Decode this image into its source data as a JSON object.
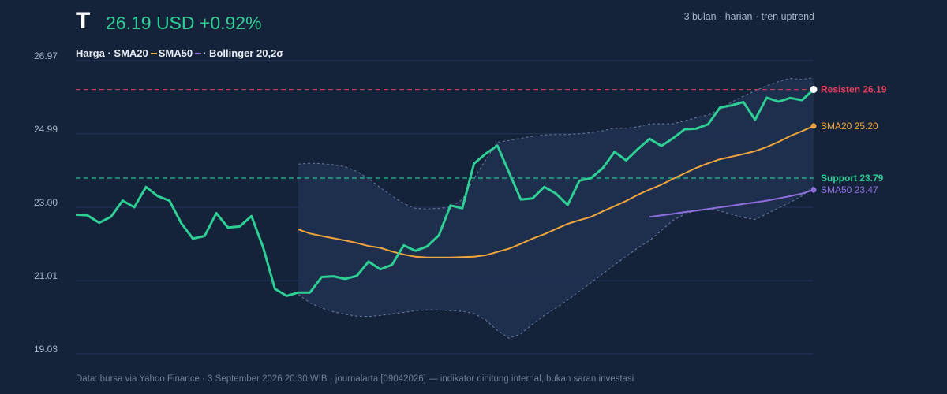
{
  "header": {
    "ticker": "T",
    "price_text": "26.19 USD +0.92%",
    "period": "3 bulan · harian · tren uptrend"
  },
  "legend": {
    "text1": "Harga · SMA20",
    "text2": "SMA50",
    "text3": "· Bollinger 20,2σ"
  },
  "footer": "Data: bursa via Yahoo Finance · 3 September 2026 20:30 WIB · journalarta [09042026] — indikator dihitung internal, bukan saran investasi",
  "colors": {
    "background": "#15233a",
    "price": "#2ecf94",
    "sma20": "#f0a63c",
    "sma50": "#8f6fe0",
    "resistance": "#e0405a",
    "support": "#2ecf94",
    "band_fill": "#1f3150"
  },
  "chart_data": {
    "type": "line",
    "ylim": [
      19.03,
      26.97
    ],
    "y_ticks": [
      "26.97",
      "24.99",
      "23.00",
      "21.01",
      "19.03"
    ],
    "y_tick_values": [
      26.97,
      24.99,
      23.0,
      21.01,
      19.03
    ],
    "n_points": 64,
    "series": [
      {
        "key": "price",
        "values": [
          22.8,
          22.78,
          22.58,
          22.74,
          23.18,
          23.0,
          23.55,
          23.3,
          23.18,
          22.57,
          22.15,
          22.22,
          22.84,
          22.45,
          22.48,
          22.76,
          21.91,
          20.79,
          20.6,
          20.69,
          20.69,
          21.11,
          21.13,
          21.06,
          21.14,
          21.53,
          21.32,
          21.44,
          21.97,
          21.82,
          21.94,
          22.24,
          23.05,
          22.97,
          24.18,
          24.45,
          24.67,
          23.94,
          23.21,
          23.24,
          23.55,
          23.37,
          23.06,
          23.72,
          23.79,
          24.06,
          24.5,
          24.27,
          24.58,
          24.85,
          24.66,
          24.87,
          25.11,
          25.13,
          25.25,
          25.7,
          25.76,
          25.85,
          25.37,
          25.97,
          25.86,
          25.96,
          25.9,
          26.19
        ]
      },
      {
        "key": "sma20",
        "values": [
          null,
          null,
          null,
          null,
          null,
          null,
          null,
          null,
          null,
          null,
          null,
          null,
          null,
          null,
          null,
          null,
          null,
          null,
          null,
          22.4,
          22.29,
          22.22,
          22.16,
          22.1,
          22.03,
          21.95,
          21.9,
          21.8,
          21.72,
          21.66,
          21.64,
          21.64,
          21.64,
          21.65,
          21.66,
          21.7,
          21.79,
          21.88,
          22.01,
          22.15,
          22.27,
          22.41,
          22.55,
          22.65,
          22.74,
          22.89,
          23.03,
          23.17,
          23.34,
          23.48,
          23.61,
          23.77,
          23.92,
          24.07,
          24.19,
          24.3,
          24.37,
          24.44,
          24.52,
          24.63,
          24.77,
          24.93,
          25.06,
          25.2
        ]
      },
      {
        "key": "sma50",
        "values": [
          null,
          null,
          null,
          null,
          null,
          null,
          null,
          null,
          null,
          null,
          null,
          null,
          null,
          null,
          null,
          null,
          null,
          null,
          null,
          null,
          null,
          null,
          null,
          null,
          null,
          null,
          null,
          null,
          null,
          null,
          null,
          null,
          null,
          null,
          null,
          null,
          null,
          null,
          null,
          null,
          null,
          null,
          null,
          null,
          null,
          null,
          null,
          null,
          null,
          22.74,
          22.78,
          22.82,
          22.87,
          22.91,
          22.95,
          23.0,
          23.04,
          23.09,
          23.13,
          23.18,
          23.24,
          23.3,
          23.37,
          23.47
        ]
      },
      {
        "key": "bollinger_upper",
        "values": [
          null,
          null,
          null,
          null,
          null,
          null,
          null,
          null,
          null,
          null,
          null,
          null,
          null,
          null,
          null,
          null,
          null,
          null,
          null,
          24.17,
          24.19,
          24.18,
          24.15,
          24.1,
          23.97,
          23.78,
          23.53,
          23.31,
          23.1,
          22.97,
          22.95,
          22.97,
          23.01,
          23.21,
          23.77,
          24.28,
          24.76,
          24.81,
          24.87,
          24.92,
          24.96,
          24.97,
          24.97,
          24.99,
          25.02,
          25.07,
          25.14,
          25.14,
          25.18,
          25.26,
          25.26,
          25.26,
          25.34,
          25.43,
          25.5,
          25.65,
          25.85,
          26.01,
          26.15,
          26.29,
          26.4,
          26.49,
          26.46,
          26.51
        ]
      },
      {
        "key": "bollinger_lower",
        "values": [
          null,
          null,
          null,
          null,
          null,
          null,
          null,
          null,
          null,
          null,
          null,
          null,
          null,
          null,
          null,
          null,
          null,
          null,
          null,
          20.64,
          20.41,
          20.27,
          20.17,
          20.1,
          20.05,
          20.04,
          20.07,
          20.11,
          20.15,
          20.2,
          20.22,
          20.22,
          20.2,
          20.18,
          20.12,
          19.95,
          19.66,
          19.45,
          19.57,
          19.83,
          20.07,
          20.27,
          20.49,
          20.72,
          20.96,
          21.2,
          21.44,
          21.67,
          21.9,
          22.1,
          22.37,
          22.65,
          22.81,
          22.92,
          22.97,
          22.9,
          22.81,
          22.72,
          22.67,
          22.82,
          22.98,
          23.13,
          23.31,
          23.56
        ]
      }
    ],
    "levels": [
      {
        "name": "Resisten",
        "value": 26.19,
        "label": "Resisten 26.19",
        "style": "dashed"
      },
      {
        "name": "Support",
        "value": 23.79,
        "label": "Support 23.79",
        "style": "dashed"
      }
    ],
    "end_labels": {
      "sma20": "SMA20 25.20",
      "sma50": "SMA50 23.47"
    }
  }
}
